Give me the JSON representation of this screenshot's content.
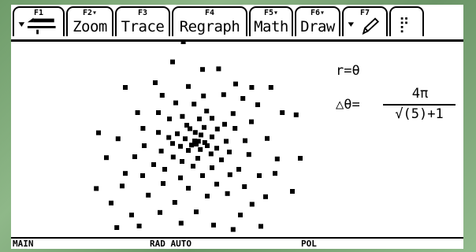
{
  "toolbar": {
    "tabs": [
      {
        "fkey": "F1",
        "label": "",
        "icon": "toolbox-icon"
      },
      {
        "fkey": "F2▾",
        "label": "Zoom"
      },
      {
        "fkey": "F3",
        "label": "Trace"
      },
      {
        "fkey": "F4",
        "label": "Regraph"
      },
      {
        "fkey": "F5▾",
        "label": "Math"
      },
      {
        "fkey": "F6▾",
        "label": "Draw"
      },
      {
        "fkey": "F7",
        "label": "",
        "icon": "pencil-icon"
      },
      {
        "fkey": "",
        "label": "",
        "icon": "more-icon"
      }
    ]
  },
  "equation": {
    "r_label": "r=θ",
    "dtheta_label": "△θ=",
    "numerator": "4π",
    "denominator": "√(5)+1"
  },
  "status": {
    "mode": "MAIN",
    "angle": "RAD AUTO",
    "graph": "POL"
  },
  "plot": {
    "point_color": "#000000",
    "points": [
      [
        -0.36,
        3.2
      ],
      [
        0.25,
        2.32
      ],
      [
        0.76,
        2.34
      ],
      [
        -0.7,
        2.56
      ],
      [
        -2.2,
        1.75
      ],
      [
        -1.25,
        1.9
      ],
      [
        -0.2,
        1.78
      ],
      [
        1.3,
        1.86
      ],
      [
        1.81,
        1.75
      ],
      [
        2.42,
        1.75
      ],
      [
        -1.03,
        1.5
      ],
      [
        0.28,
        1.48
      ],
      [
        0.92,
        1.52
      ],
      [
        1.53,
        1.4
      ],
      [
        -0.6,
        1.26
      ],
      [
        -0.02,
        1.22
      ],
      [
        2.0,
        1.2
      ],
      [
        -1.81,
        0.95
      ],
      [
        -1.15,
        0.95
      ],
      [
        0.38,
        1.0
      ],
      [
        1.22,
        0.92
      ],
      [
        2.78,
        0.95
      ],
      [
        3.22,
        0.88
      ],
      [
        -0.8,
        0.75
      ],
      [
        -0.39,
        0.83
      ],
      [
        0.15,
        0.75
      ],
      [
        0.55,
        0.77
      ],
      [
        0.95,
        0.58
      ],
      [
        1.8,
        0.66
      ],
      [
        -1.64,
        0.45
      ],
      [
        -0.25,
        0.55
      ],
      [
        -0.15,
        0.44
      ],
      [
        0.3,
        0.48
      ],
      [
        0.72,
        0.43
      ],
      [
        1.28,
        0.45
      ],
      [
        -3.05,
        0.31
      ],
      [
        -1.15,
        0.32
      ],
      [
        -0.55,
        0.28
      ],
      [
        0.02,
        0.32
      ],
      [
        0.2,
        0.24
      ],
      [
        0.55,
        0.18
      ],
      [
        -2.43,
        0.12
      ],
      [
        -0.82,
        0.16
      ],
      [
        -0.3,
        0.12
      ],
      [
        0.0,
        0.05
      ],
      [
        0.12,
        0.04
      ],
      [
        0.32,
        0.0
      ],
      [
        1.0,
        0.04
      ],
      [
        1.6,
        0.06
      ],
      [
        2.3,
        0.13
      ],
      [
        -1.6,
        -0.1
      ],
      [
        -0.7,
        -0.03
      ],
      [
        -0.45,
        -0.12
      ],
      [
        -0.1,
        -0.08
      ],
      [
        0.05,
        -0.05
      ],
      [
        0.4,
        -0.1
      ],
      [
        0.7,
        -0.18
      ],
      [
        -1.06,
        -0.27
      ],
      [
        -0.2,
        -0.25
      ],
      [
        0.18,
        -0.22
      ],
      [
        0.52,
        -0.36
      ],
      [
        1.1,
        -0.3
      ],
      [
        1.72,
        -0.38
      ],
      [
        -2.8,
        -0.48
      ],
      [
        -1.9,
        -0.45
      ],
      [
        -0.68,
        -0.46
      ],
      [
        -0.4,
        -0.6
      ],
      [
        0.1,
        -0.5
      ],
      [
        0.85,
        -0.55
      ],
      [
        2.62,
        -0.52
      ],
      [
        3.35,
        -0.5
      ],
      [
        -1.3,
        -0.7
      ],
      [
        -0.95,
        -0.85
      ],
      [
        -0.05,
        -0.75
      ],
      [
        0.55,
        -0.8
      ],
      [
        1.4,
        -0.85
      ],
      [
        -2.2,
        -0.98
      ],
      [
        -1.65,
        -1.05
      ],
      [
        0.25,
        -1.05
      ],
      [
        1.12,
        -1.02
      ],
      [
        2.05,
        -1.05
      ],
      [
        2.55,
        -0.98
      ],
      [
        -0.45,
        -1.12
      ],
      [
        -1.0,
        -1.3
      ],
      [
        0.7,
        -1.32
      ],
      [
        -3.12,
        -1.46
      ],
      [
        -2.3,
        -1.38
      ],
      [
        -0.2,
        -1.45
      ],
      [
        1.58,
        -1.4
      ],
      [
        -1.47,
        -1.67
      ],
      [
        0.4,
        -1.7
      ],
      [
        1.04,
        -1.62
      ],
      [
        2.25,
        -1.72
      ],
      [
        3.1,
        -1.55
      ],
      [
        -2.65,
        -1.92
      ],
      [
        -0.63,
        -1.9
      ],
      [
        1.82,
        -1.96
      ],
      [
        -2.0,
        -2.3
      ],
      [
        -1.1,
        -2.22
      ],
      [
        0.05,
        -2.2
      ],
      [
        1.45,
        -2.3
      ],
      [
        -2.47,
        -2.7
      ],
      [
        -1.76,
        -2.65
      ],
      [
        -0.43,
        -2.56
      ],
      [
        0.6,
        -2.62
      ],
      [
        1.22,
        -2.76
      ],
      [
        2.1,
        -2.66
      ]
    ]
  }
}
